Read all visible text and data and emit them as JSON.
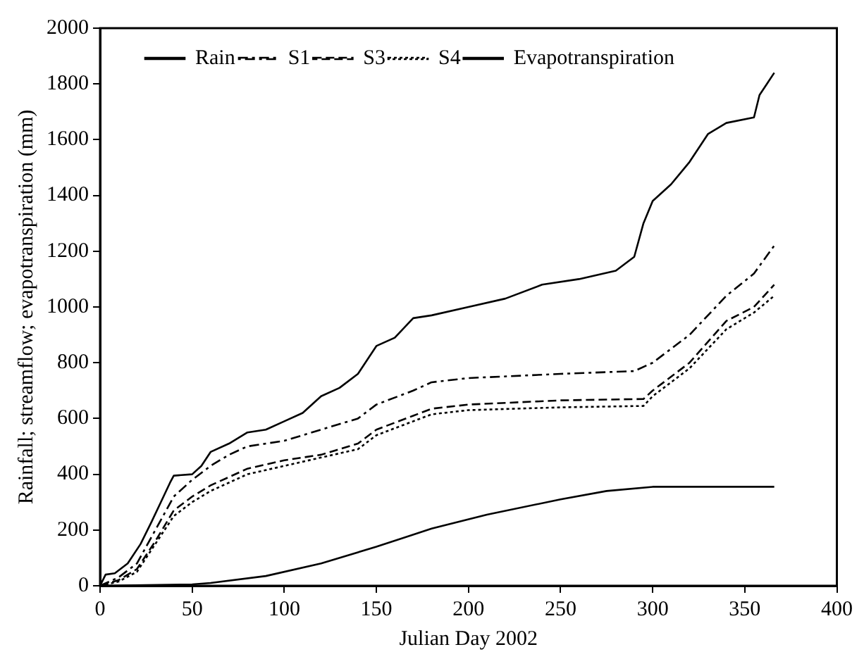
{
  "chart_data": {
    "type": "line",
    "xlabel": "Julian Day 2002",
    "ylabel": "Rainfall; streamflow; evapotranspiration (mm)",
    "xlim": [
      0,
      400
    ],
    "xticks": [
      0,
      50,
      100,
      150,
      200,
      250,
      300,
      350,
      400
    ],
    "ylim": [
      0,
      2000
    ],
    "yticks": [
      0,
      200,
      400,
      600,
      800,
      1000,
      1200,
      1400,
      1600,
      1800,
      2000
    ],
    "grid": false,
    "legend": "top left",
    "marker": "none",
    "series": [
      {
        "name": "Rain",
        "color": "#000000",
        "line_style": "solid",
        "x": [
          0,
          3,
          8,
          15,
          22,
          28,
          33,
          38,
          40,
          50,
          55,
          60,
          70,
          80,
          90,
          100,
          110,
          120,
          130,
          140,
          150,
          160,
          170,
          180,
          200,
          220,
          240,
          260,
          280,
          290,
          295,
          300,
          310,
          320,
          330,
          340,
          355,
          358,
          362,
          366
        ],
        "values": [
          0,
          40,
          45,
          80,
          150,
          230,
          300,
          370,
          395,
          400,
          430,
          480,
          510,
          550,
          560,
          590,
          620,
          680,
          710,
          760,
          860,
          890,
          960,
          970,
          1000,
          1030,
          1080,
          1100,
          1130,
          1180,
          1300,
          1380,
          1440,
          1520,
          1620,
          1660,
          1680,
          1760,
          1800,
          1840
        ]
      },
      {
        "name": "S1",
        "color": "#000000",
        "line_style": "dashdot",
        "x": [
          0,
          10,
          20,
          30,
          40,
          50,
          60,
          70,
          80,
          100,
          120,
          140,
          150,
          170,
          180,
          200,
          250,
          290,
          300,
          320,
          340,
          355,
          366
        ],
        "values": [
          0,
          30,
          80,
          200,
          320,
          380,
          430,
          470,
          500,
          520,
          560,
          600,
          650,
          700,
          730,
          745,
          760,
          770,
          800,
          900,
          1040,
          1120,
          1220
        ]
      },
      {
        "name": "S3",
        "color": "#000000",
        "line_style": "dashed",
        "x": [
          0,
          10,
          20,
          30,
          40,
          50,
          60,
          80,
          100,
          120,
          140,
          150,
          170,
          180,
          200,
          250,
          295,
          300,
          320,
          340,
          355,
          366
        ],
        "values": [
          0,
          20,
          60,
          160,
          270,
          320,
          360,
          420,
          450,
          470,
          510,
          560,
          610,
          635,
          650,
          665,
          670,
          700,
          800,
          950,
          1000,
          1080
        ]
      },
      {
        "name": "S4",
        "color": "#000000",
        "line_style": "dotted",
        "x": [
          0,
          10,
          20,
          30,
          40,
          50,
          60,
          80,
          100,
          120,
          140,
          150,
          170,
          180,
          200,
          250,
          295,
          300,
          320,
          340,
          355,
          366
        ],
        "values": [
          0,
          15,
          50,
          150,
          250,
          300,
          340,
          400,
          430,
          460,
          490,
          540,
          590,
          615,
          630,
          640,
          645,
          680,
          780,
          920,
          980,
          1040
        ]
      },
      {
        "name": "Evapotranspiration",
        "color": "#000000",
        "line_style": "solid",
        "x": [
          0,
          50,
          60,
          90,
          120,
          150,
          180,
          210,
          250,
          275,
          300,
          366
        ],
        "values": [
          0,
          5,
          10,
          35,
          80,
          140,
          205,
          255,
          310,
          340,
          355,
          355
        ]
      }
    ]
  }
}
